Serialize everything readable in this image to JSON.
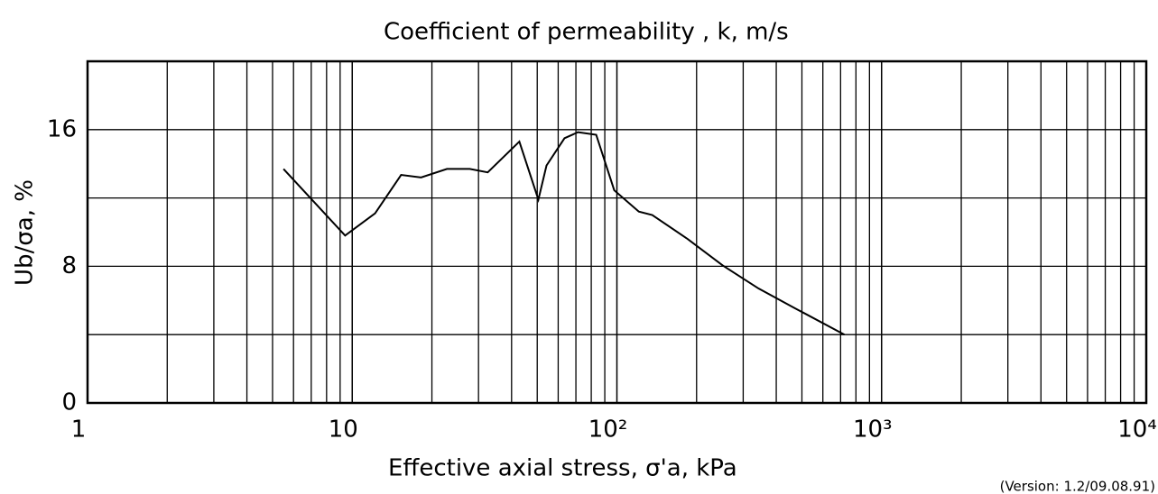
{
  "chart_data": {
    "type": "line",
    "title": "Coefficient of permeability      , k, m/s",
    "x_label": "Effective axial stress,  σ'a, kPa",
    "y_label": "Ub/σa, %",
    "note": "(Version: 1.2/09.08.91)",
    "x": [
      5.5,
      9.4,
      12.2,
      15.3,
      18.2,
      22.8,
      27.8,
      32.5,
      42.8,
      50.5,
      54.2,
      63.4,
      71.3,
      83.5,
      97.7,
      121,
      136,
      183,
      251,
      343,
      470,
      724
    ],
    "series": [
      {
        "name": "Ub/σa",
        "color": "#000000",
        "values": [
          13.7,
          9.8,
          11.1,
          13.35,
          13.2,
          13.7,
          13.7,
          13.5,
          15.3,
          11.9,
          13.9,
          15.5,
          15.85,
          15.7,
          12.45,
          11.2,
          11.0,
          9.65,
          8.05,
          6.7,
          5.55,
          4.0
        ]
      }
    ],
    "xscale": "log",
    "xlim": [
      1,
      10000
    ],
    "xticks": [
      1,
      10,
      {
        "value": 100,
        "label": "10²"
      },
      {
        "value": 1000,
        "label": "10³"
      },
      {
        "value": 10000,
        "label": "10⁴"
      }
    ],
    "ylim": [
      0,
      20
    ],
    "yticks": [
      0,
      8,
      16
    ],
    "yminor": [
      4,
      12,
      20
    ],
    "grid": true
  }
}
